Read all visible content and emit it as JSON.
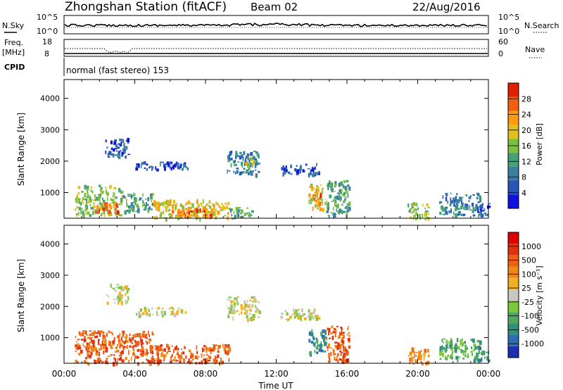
{
  "header": {
    "title": "Zhongshan Station (fitACF)",
    "beam": "Beam 02",
    "date": "22/Aug/2016"
  },
  "status_panels": {
    "nsky_label": "N.Sky",
    "nsky_ticks": [
      "10^5",
      "10^0"
    ],
    "nsearch_label": "N.Search",
    "nsearch_ticks": [
      "10^5",
      "10^0"
    ],
    "freq_label_line1": "Freq.",
    "freq_label_line2": "[MHz]",
    "freq_ticks": [
      "18",
      "8"
    ],
    "nave_label": "Nave",
    "nave_ticks": [
      "60",
      "0"
    ],
    "cpid_label": "CPID",
    "cpid_text": "normal (fast stereo) 153"
  },
  "chart_data": [
    {
      "type": "heatmap",
      "name": "power",
      "ylabel": "Slant Range [km]",
      "ylim": [
        180,
        4600
      ],
      "yticks": [
        "4000",
        "3000",
        "2000",
        "1000"
      ],
      "xlim": [
        0,
        24
      ],
      "colorbar_label": "Power [dB]",
      "colorbar_ticks": [
        "28",
        "24",
        "20",
        "16",
        "12",
        "8",
        "4"
      ],
      "colors": [
        "#1010e0",
        "#2855b8",
        "#3a7fa0",
        "#46a078",
        "#7cc040",
        "#e0c020",
        "#ff9a10",
        "#f06010",
        "#e02000"
      ],
      "echo_regions": [
        {
          "t0": 0.6,
          "t1": 3.3,
          "r0": 300,
          "r1": 1250,
          "level": 4
        },
        {
          "t0": 1.8,
          "t1": 3.0,
          "r0": 400,
          "r1": 700,
          "level": 7
        },
        {
          "t0": 3.3,
          "t1": 5.0,
          "r0": 400,
          "r1": 1000,
          "level": 3
        },
        {
          "t0": 5.0,
          "t1": 9.3,
          "r0": 200,
          "r1": 800,
          "level": 5
        },
        {
          "t0": 5.8,
          "t1": 8.4,
          "r0": 260,
          "r1": 520,
          "level": 7
        },
        {
          "t0": 9.3,
          "t1": 10.6,
          "r0": 200,
          "r1": 560,
          "level": 3
        },
        {
          "t0": 2.3,
          "t1": 3.6,
          "r0": 2150,
          "r1": 2750,
          "level": 1
        },
        {
          "t0": 4.0,
          "t1": 7.0,
          "r0": 1750,
          "r1": 2000,
          "level": 1
        },
        {
          "t0": 9.2,
          "t1": 11.0,
          "r0": 1600,
          "r1": 2350,
          "level": 2
        },
        {
          "t0": 10.0,
          "t1": 10.8,
          "r0": 1900,
          "r1": 2200,
          "level": 4
        },
        {
          "t0": 12.2,
          "t1": 14.4,
          "r0": 1600,
          "r1": 1950,
          "level": 1
        },
        {
          "t0": 13.8,
          "t1": 14.8,
          "r0": 500,
          "r1": 1300,
          "level": 5
        },
        {
          "t0": 14.0,
          "t1": 14.5,
          "r0": 700,
          "r1": 1000,
          "level": 7
        },
        {
          "t0": 14.8,
          "t1": 16.1,
          "r0": 250,
          "r1": 1400,
          "level": 3
        },
        {
          "t0": 19.4,
          "t1": 20.6,
          "r0": 180,
          "r1": 700,
          "level": 4
        },
        {
          "t0": 21.2,
          "t1": 23.6,
          "r0": 300,
          "r1": 1000,
          "level": 2
        },
        {
          "t0": 23.2,
          "t1": 24.0,
          "r0": 300,
          "r1": 700,
          "level": 1
        }
      ]
    },
    {
      "type": "heatmap",
      "name": "velocity",
      "ylabel": "Slant Range [km]",
      "ylim": [
        180,
        4600
      ],
      "yticks": [
        "4000",
        "3000",
        "2000",
        "1000"
      ],
      "xlim": [
        0,
        24
      ],
      "xticks": [
        "00:00",
        "04:00",
        "08:00",
        "12:00",
        "16:00",
        "20:00",
        "00:00"
      ],
      "xlabel": "Time UT",
      "colorbar_label": "Velocity [m s⁻¹]",
      "colorbar_ticks": [
        "1000",
        "500",
        "100",
        "25",
        "-25",
        "-100",
        "-500",
        "-1000"
      ],
      "colors": [
        "#1c2fb0",
        "#2e6fb4",
        "#2f8f7a",
        "#4fa860",
        "#7cc83a",
        "#c8c8c0",
        "#f0b020",
        "#f08818",
        "#f06010",
        "#e03010",
        "#e00000"
      ],
      "echo_regions": [
        {
          "t0": 0.6,
          "t1": 5.0,
          "r0": 200,
          "r1": 1250,
          "level": 8
        },
        {
          "t0": 5.0,
          "t1": 9.3,
          "r0": 200,
          "r1": 800,
          "level": 8
        },
        {
          "t0": 2.3,
          "t1": 3.6,
          "r0": 2150,
          "r1": 2750,
          "level": 5
        },
        {
          "t0": 4.0,
          "t1": 7.0,
          "r0": 1750,
          "r1": 2000,
          "level": 5
        },
        {
          "t0": 9.2,
          "t1": 11.0,
          "r0": 1600,
          "r1": 2350,
          "level": 5
        },
        {
          "t0": 12.2,
          "t1": 14.4,
          "r0": 1600,
          "r1": 1950,
          "level": 5
        },
        {
          "t0": 13.8,
          "t1": 14.8,
          "r0": 500,
          "r1": 1300,
          "level": 2
        },
        {
          "t0": 14.8,
          "t1": 16.1,
          "r0": 250,
          "r1": 1400,
          "level": 8
        },
        {
          "t0": 19.4,
          "t1": 20.6,
          "r0": 180,
          "r1": 700,
          "level": 7
        },
        {
          "t0": 21.2,
          "t1": 23.6,
          "r0": 300,
          "r1": 1000,
          "level": 3
        },
        {
          "t0": 23.2,
          "t1": 24.0,
          "r0": 300,
          "r1": 700,
          "level": 2
        }
      ]
    }
  ]
}
